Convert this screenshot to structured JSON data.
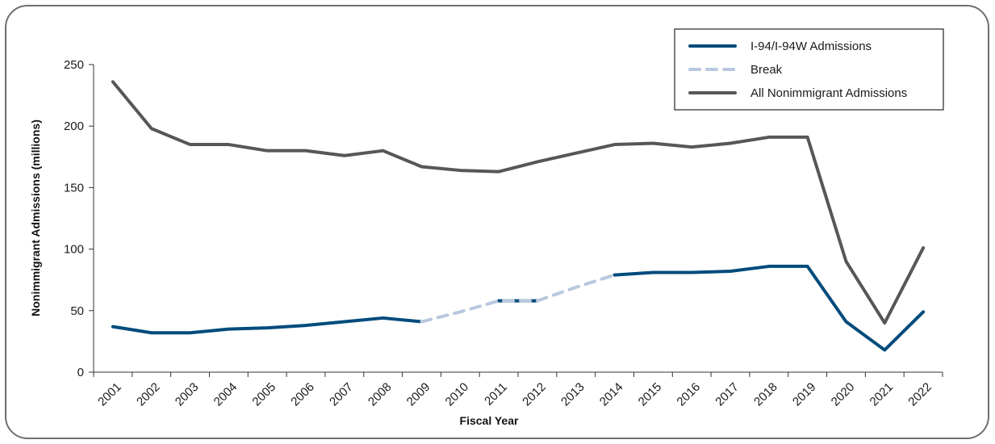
{
  "chart_data": {
    "type": "line",
    "xlabel": "Fiscal Year",
    "ylabel": "Nonimmigrant Admissions (millions)",
    "ylim": [
      0,
      250
    ],
    "yticks": [
      0,
      50,
      100,
      150,
      200,
      250
    ],
    "categories": [
      "2001",
      "2002",
      "2003",
      "2004",
      "2005",
      "2006",
      "2007",
      "2008",
      "2009",
      "2010",
      "2011",
      "2012",
      "2013",
      "2014",
      "2015",
      "2016",
      "2017",
      "2018",
      "2019",
      "2020",
      "2021",
      "2022"
    ],
    "legend_position": "top-right",
    "series": [
      {
        "name": "I-94/I-94W Admissions",
        "color": "#004b7c",
        "style": "solid",
        "values": [
          37,
          32,
          32,
          35,
          36,
          38,
          41,
          44,
          41,
          null,
          58,
          58,
          null,
          79,
          81,
          81,
          82,
          86,
          86,
          41,
          18,
          49
        ]
      },
      {
        "name": "Break",
        "color": "#b8c8de",
        "style": "dashed",
        "values": [
          null,
          null,
          null,
          null,
          null,
          null,
          null,
          null,
          41,
          49,
          58,
          58,
          69,
          79,
          null,
          null,
          null,
          null,
          null,
          null,
          null,
          null
        ]
      },
      {
        "name": "All Nonimmigrant Admissions",
        "color": "#575757",
        "style": "solid",
        "values": [
          236,
          198,
          185,
          185,
          180,
          180,
          176,
          180,
          167,
          164,
          163,
          171,
          178,
          185,
          186,
          183,
          186,
          191,
          191,
          90,
          40,
          101
        ]
      }
    ]
  }
}
